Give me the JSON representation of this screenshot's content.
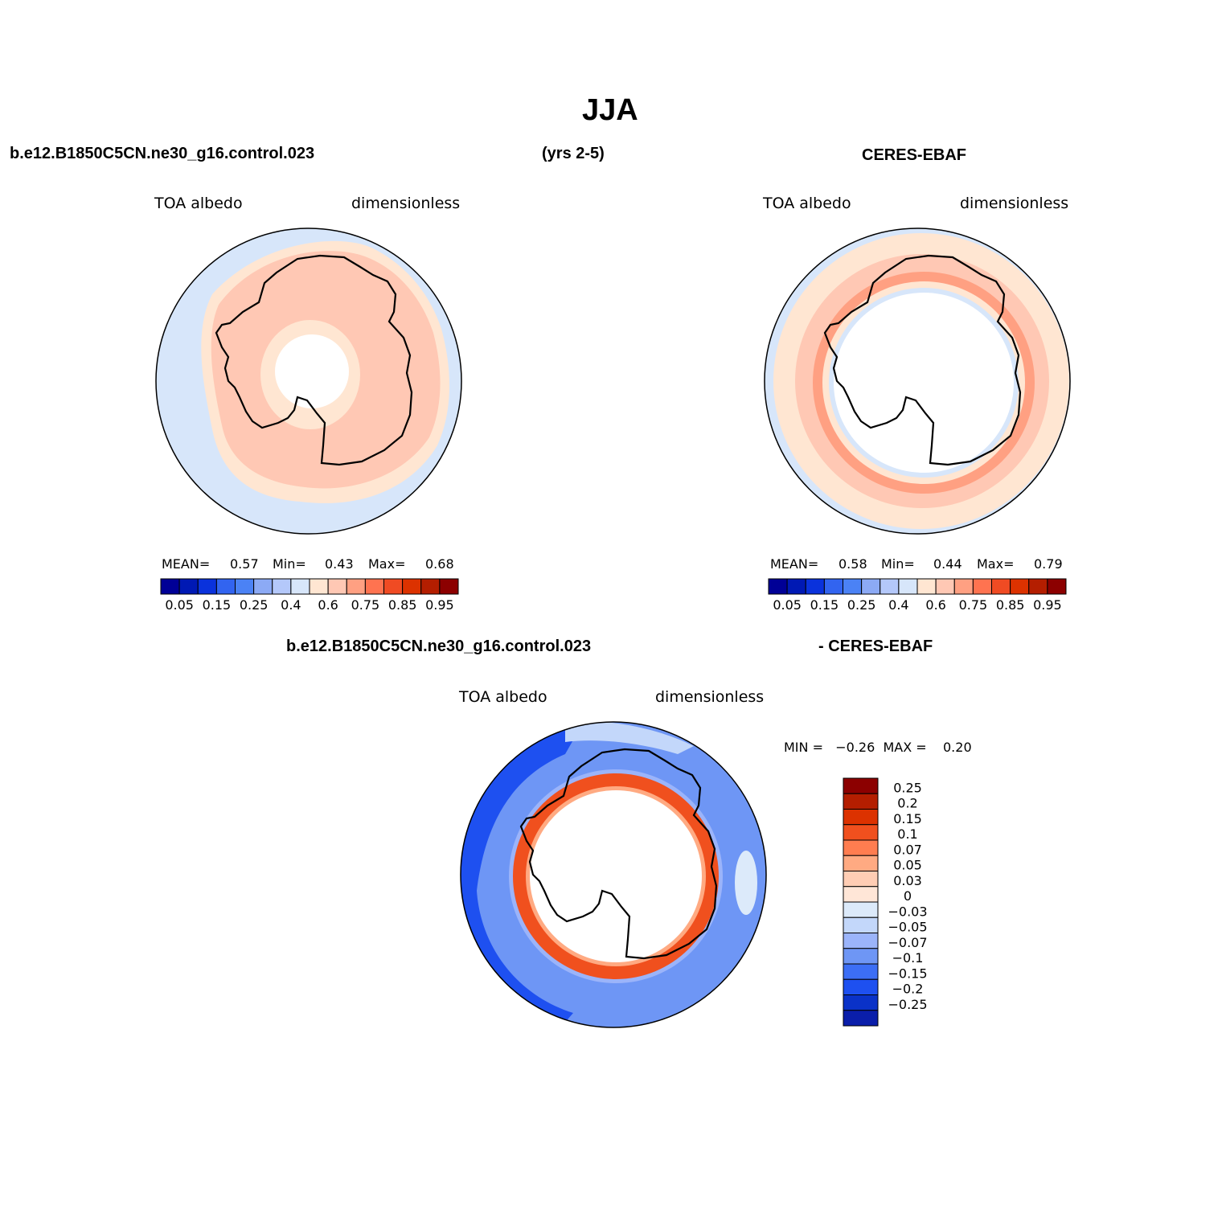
{
  "title": "JJA",
  "colors": {
    "palette_abs": [
      "#000096",
      "#0019b4",
      "#0a32dc",
      "#3264f0",
      "#4b82f5",
      "#8caaf5",
      "#b4c8fa",
      "#d7e6fa",
      "#ffe6d2",
      "#ffc8b4",
      "#ffa082",
      "#ff7350",
      "#f04b23",
      "#dc3200",
      "#b41e00",
      "#8c0000"
    ],
    "palette_diff": [
      "#000096",
      "#0a1eaa",
      "#0a32c8",
      "#1e50f0",
      "#3c6ef5",
      "#6e96f5",
      "#9bb4fa",
      "#c3d7fa",
      "#dceafa",
      "#ffe6d7",
      "#ffcdb4",
      "#ffaa82",
      "#ff7d50",
      "#f0501e",
      "#dc3200",
      "#b41e00",
      "#8c0000"
    ]
  },
  "panels": {
    "model": {
      "case_name": "b.e12.B1850C5CN.ne30_g16.control.023",
      "years": "(yrs 2-5)",
      "variable": "TOA  albedo",
      "units": "dimensionless",
      "stats": {
        "mean_label": "MEAN=",
        "mean": "0.57",
        "min_label": "Min=",
        "min": "0.43",
        "max_label": "Max=",
        "max": "0.68"
      },
      "colorbar_labels": [
        "0.05",
        "0.15",
        "0.25",
        "0.4",
        "0.6",
        "0.75",
        "0.85",
        "0.95"
      ]
    },
    "obs": {
      "source_name": "CERES-EBAF",
      "variable": "TOA  albedo",
      "units": "dimensionless",
      "stats": {
        "mean_label": "MEAN=",
        "mean": "0.58",
        "min_label": "Min=",
        "min": "0.44",
        "max_label": "Max=",
        "max": "0.79"
      },
      "colorbar_labels": [
        "0.05",
        "0.15",
        "0.25",
        "0.4",
        "0.6",
        "0.75",
        "0.85",
        "0.95"
      ]
    },
    "diff": {
      "case_name": "b.e12.B1850C5CN.ne30_g16.control.023",
      "minus_label": "- CERES-EBAF",
      "variable": "TOA  albedo",
      "units": "dimensionless",
      "stats_text": "MIN =   −0.26  MAX =    0.20",
      "colorbar_labels": [
        "0.25",
        "0.2",
        "0.15",
        "0.1",
        "0.07",
        "0.05",
        "0.03",
        "0",
        "−0.03",
        "−0.05",
        "−0.07",
        "−0.1",
        "−0.15",
        "−0.2",
        "−0.25"
      ]
    }
  },
  "chart_data": [
    {
      "type": "heatmap",
      "projection": "south polar stereographic",
      "title": "b.e12.B1850C5CN.ne30_g16.control.023 (yrs 2-5)",
      "variable": "TOA albedo",
      "units": "dimensionless",
      "mean": 0.57,
      "min": 0.43,
      "max": 0.68,
      "levels": [
        0.05,
        0.1,
        0.15,
        0.2,
        0.25,
        0.3,
        0.35,
        0.4,
        0.5,
        0.6,
        0.7,
        0.75,
        0.8,
        0.85,
        0.9,
        0.95
      ]
    },
    {
      "type": "heatmap",
      "projection": "south polar stereographic",
      "title": "CERES-EBAF",
      "variable": "TOA albedo",
      "units": "dimensionless",
      "mean": 0.58,
      "min": 0.44,
      "max": 0.79,
      "levels": [
        0.05,
        0.1,
        0.15,
        0.2,
        0.25,
        0.3,
        0.35,
        0.4,
        0.5,
        0.6,
        0.7,
        0.75,
        0.8,
        0.85,
        0.9,
        0.95
      ]
    },
    {
      "type": "heatmap",
      "projection": "south polar stereographic",
      "title": "b.e12.B1850C5CN.ne30_g16.control.023 - CERES-EBAF",
      "variable": "TOA albedo",
      "units": "dimensionless",
      "min": -0.26,
      "max": 0.2,
      "levels": [
        -0.25,
        -0.2,
        -0.15,
        -0.1,
        -0.07,
        -0.05,
        -0.03,
        0,
        0.03,
        0.05,
        0.07,
        0.1,
        0.15,
        0.2,
        0.25
      ]
    }
  ]
}
